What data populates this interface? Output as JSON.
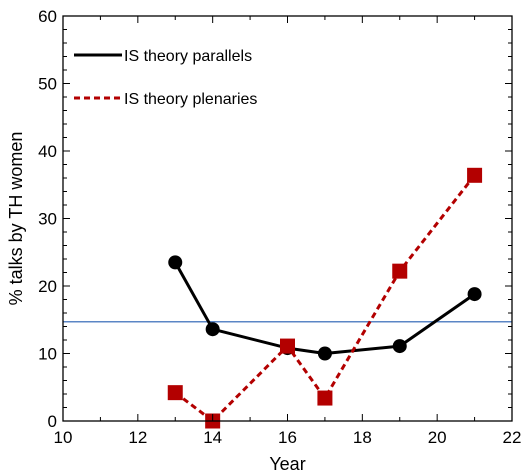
{
  "chart_data": {
    "type": "line",
    "xlabel": "Year",
    "ylabel": "% talks by TH women",
    "xlim": [
      10,
      22
    ],
    "ylim": [
      0,
      60
    ],
    "xticks": [
      10,
      12,
      14,
      16,
      18,
      20,
      22
    ],
    "yticks": [
      0,
      10,
      20,
      30,
      40,
      50,
      60
    ],
    "grid": false,
    "legend_position": "top-left",
    "reference_line": {
      "y": 14.7,
      "color": "#5b86c5"
    },
    "series": [
      {
        "name": "IS theory parallels",
        "color": "#000000",
        "line_style": "solid",
        "marker": "circle",
        "x": [
          13,
          14,
          16,
          17,
          19,
          21
        ],
        "y": [
          23.5,
          13.6,
          10.8,
          10.0,
          11.1,
          18.8
        ]
      },
      {
        "name": "IS theory plenaries",
        "color": "#b30000",
        "line_style": "dashed",
        "marker": "square",
        "x": [
          13,
          14,
          16,
          17,
          19,
          21
        ],
        "y": [
          4.2,
          0.0,
          11.1,
          3.4,
          22.2,
          36.4
        ]
      }
    ]
  }
}
